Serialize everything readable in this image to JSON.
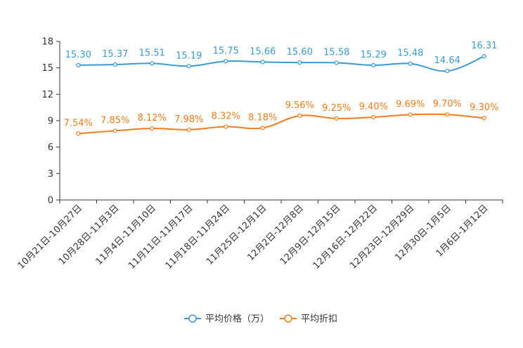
{
  "chart_data": {
    "type": "line",
    "categories": [
      "10月21日-10月27日",
      "10月28日-11月3日",
      "11月4日-11月10日",
      "11月11日-11月17日",
      "11月18日-11月24日",
      "11月25日-12月1日",
      "12月2日-12月8日",
      "12月9日-12月15日",
      "12月16日-12月22日",
      "12月23日-12月29日",
      "12月30日-1月5日",
      "1月6日-1月12日"
    ],
    "ylim": [
      0,
      18
    ],
    "yticks": [
      0,
      3,
      6,
      9,
      12,
      15,
      18
    ],
    "ytick_labels": [
      "0",
      "3",
      "6",
      "9",
      "12",
      "15",
      "18"
    ],
    "series": [
      {
        "name": "平均价格（万）",
        "color": "#3a9ad0",
        "values": [
          15.3,
          15.37,
          15.51,
          15.19,
          15.75,
          15.66,
          15.6,
          15.58,
          15.29,
          15.48,
          14.64,
          16.31
        ],
        "labels": [
          "15.30",
          "15.37",
          "15.51",
          "15.19",
          "15.75",
          "15.66",
          "15.60",
          "15.58",
          "15.29",
          "15.48",
          "14.64",
          "16.31"
        ]
      },
      {
        "name": "平均折扣",
        "color": "#f07c1a",
        "values": [
          7.54,
          7.85,
          8.12,
          7.98,
          8.32,
          8.18,
          9.56,
          9.25,
          9.4,
          9.69,
          9.7,
          9.3
        ],
        "labels": [
          "7.54%",
          "7.85%",
          "8.12%",
          "7.98%",
          "8.32%",
          "8.18%",
          "9.56%",
          "9.25%",
          "9.40%",
          "9.69%",
          "9.70%",
          "9.30%"
        ]
      }
    ],
    "legend_position": "bottom-center"
  }
}
